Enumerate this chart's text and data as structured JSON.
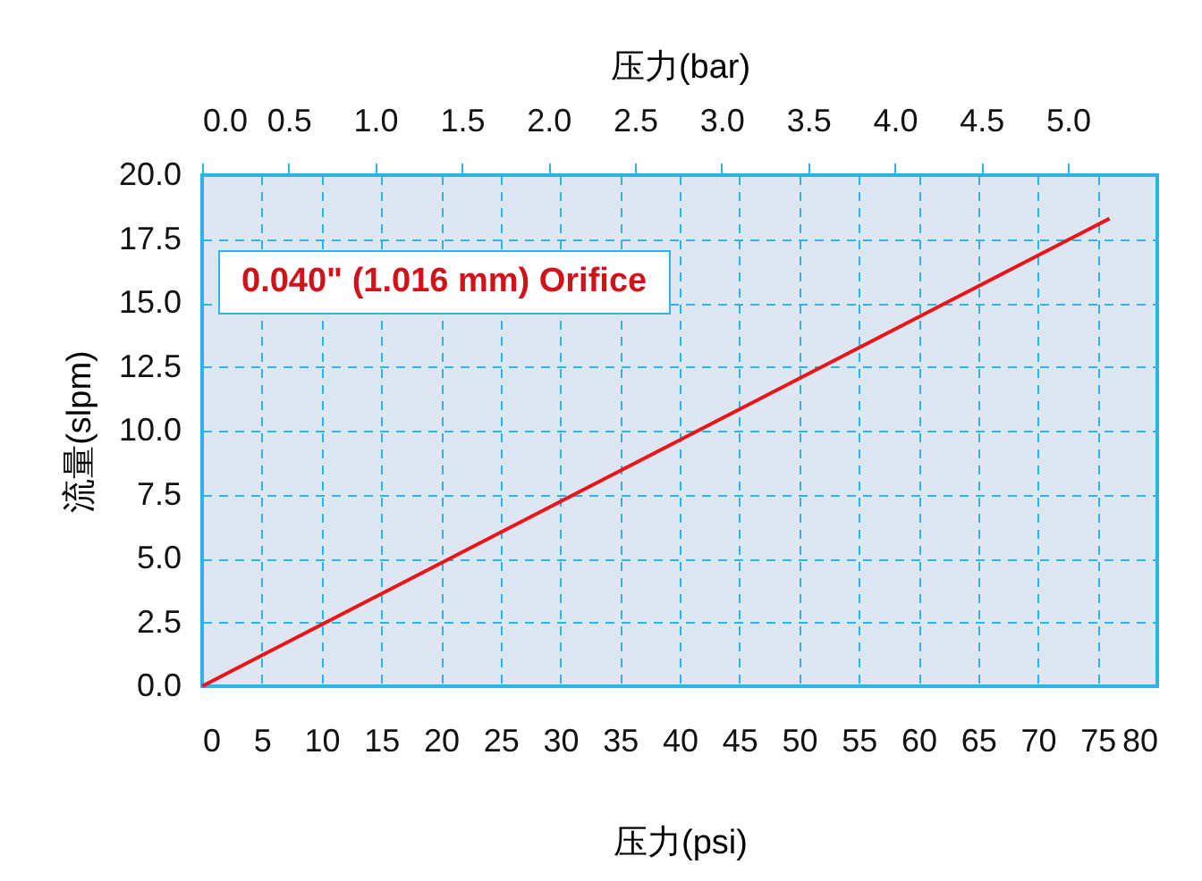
{
  "chart_data": {
    "type": "line",
    "xlabel": "压力(psi)",
    "x2label": "压力(bar)",
    "ylabel": "流量(slpm)",
    "x": [
      0,
      76
    ],
    "series": [
      {
        "color": "#e8161b",
        "values": [
          0,
          18.3
        ]
      }
    ],
    "xlim": [
      0,
      80
    ],
    "xticks": [
      0,
      5,
      10,
      15,
      20,
      25,
      30,
      35,
      40,
      45,
      50,
      55,
      60,
      65,
      70,
      75,
      80
    ],
    "x2lim": [
      0,
      5.516
    ],
    "x2ticks": [
      {
        "value": 0,
        "label": "0.0"
      },
      {
        "value": 0.5,
        "label": "0.5"
      },
      {
        "value": 1,
        "label": "1.0"
      },
      {
        "value": 1.5,
        "label": "1.5"
      },
      {
        "value": 2,
        "label": "2.0"
      },
      {
        "value": 2.5,
        "label": "2.5"
      },
      {
        "value": 3,
        "label": "3.0"
      },
      {
        "value": 3.5,
        "label": "3.5"
      },
      {
        "value": 4,
        "label": "4.0"
      },
      {
        "value": 4.5,
        "label": "4.5"
      },
      {
        "value": 5,
        "label": "5.0"
      }
    ],
    "ylim": [
      0,
      20
    ],
    "yticks": [
      {
        "value": 0,
        "label": "0.0"
      },
      {
        "value": 2.5,
        "label": "2.5"
      },
      {
        "value": 5,
        "label": "5.0"
      },
      {
        "value": 7.5,
        "label": "7.5"
      },
      {
        "value": 10,
        "label": "10.0"
      },
      {
        "value": 12.5,
        "label": "12.5"
      },
      {
        "value": 15,
        "label": "15.0"
      },
      {
        "value": 17.5,
        "label": "17.5"
      },
      {
        "value": 20,
        "label": "20.0"
      }
    ],
    "annotations": [
      "0.040\" (1.016 mm) Orifice"
    ],
    "grid": true,
    "line_style": "solid"
  }
}
